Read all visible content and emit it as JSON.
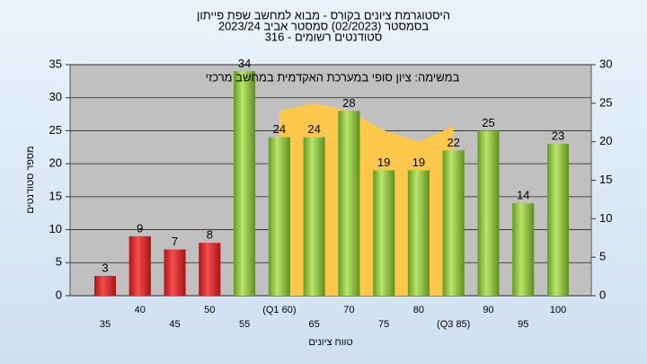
{
  "chart_data": {
    "type": "bar",
    "title_lines": [
      "היסטוגרמת ציונים בקורס - מבוא למחשב שפת פייתון",
      "בסמסטר  (02/2023)  סמסטר אביב 2023/24",
      "316 - סטודנטים רשומים"
    ],
    "annotation": "במשימה: ציון סופי במערכת האקדמית במחשב מרכזי",
    "x_label": "טווח ציונים",
    "y_label": "מספר סטודנטים",
    "categories": [
      "35",
      "40",
      "45",
      "50",
      "55",
      "(Q1 60)",
      "65",
      "70",
      "75",
      "80",
      "(Q3 85)",
      "90",
      "95",
      "100"
    ],
    "series": [
      {
        "type": "bar",
        "values": [
          3,
          9,
          7,
          8,
          34,
          24,
          24,
          28,
          19,
          19,
          22,
          25,
          14,
          23
        ],
        "colors": [
          "#d42a2a",
          "#d42a2a",
          "#d42a2a",
          "#d42a2a",
          "#8cc63f",
          "#8cc63f",
          "#8cc63f",
          "#8cc63f",
          "#8cc63f",
          "#8cc63f",
          "#8cc63f",
          "#8cc63f",
          "#8cc63f",
          "#8cc63f"
        ]
      },
      {
        "type": "area",
        "axis": "y2",
        "color": "#fcc84c",
        "values": [
          null,
          null,
          null,
          null,
          null,
          24,
          25,
          24,
          21.5,
          20,
          22,
          null,
          null,
          null
        ]
      }
    ],
    "ylim": [
      0,
      35
    ],
    "yticks": [
      0,
      5,
      10,
      15,
      20,
      25,
      30,
      35
    ],
    "y2lim": [
      0,
      30
    ],
    "y2ticks": [
      0,
      5,
      10,
      15,
      20,
      25,
      30
    ],
    "grid": true
  }
}
